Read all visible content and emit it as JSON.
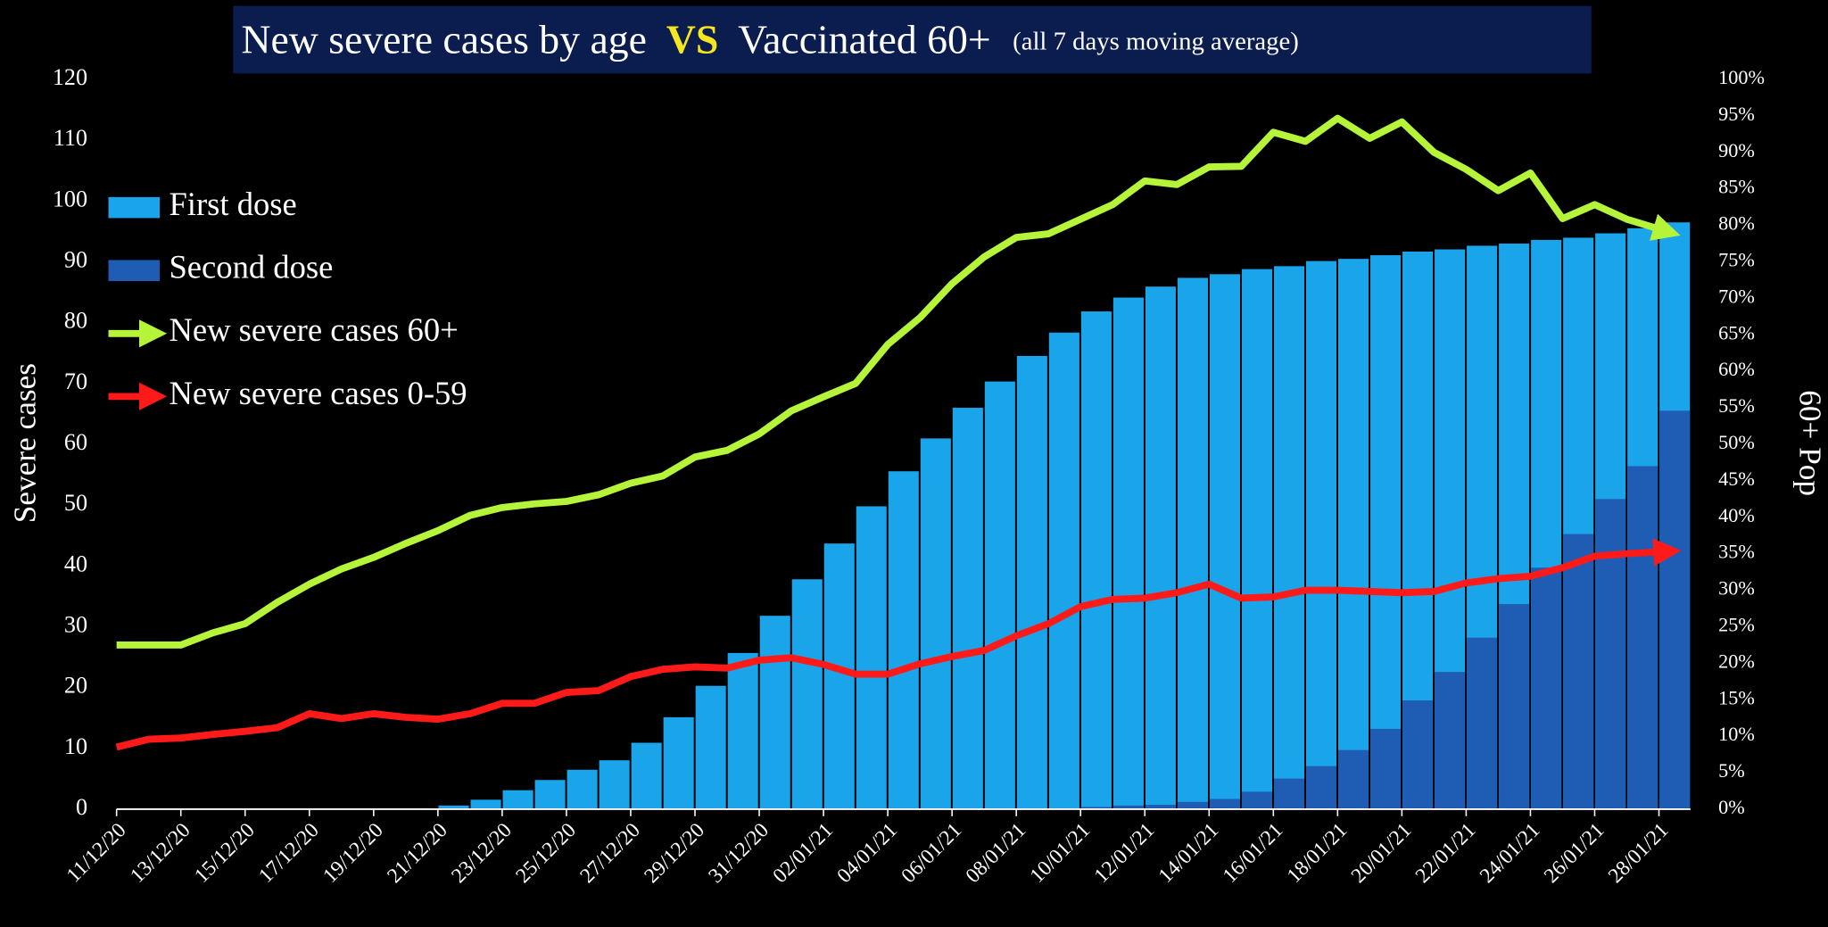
{
  "chart_data": {
    "type": "combo",
    "title_parts": [
      "New severe cases by age",
      "VS",
      "Vaccinated 60+",
      "(all 7 days moving average)"
    ],
    "y_label": "Severe cases",
    "y2_label": "60+ Pop",
    "categories": [
      "11/12/20",
      null,
      "13/12/20",
      null,
      "15/12/20",
      null,
      "17/12/20",
      null,
      "19/12/20",
      null,
      "21/12/20",
      null,
      "23/12/20",
      null,
      "25/12/20",
      null,
      "27/12/20",
      null,
      "29/12/20",
      null,
      "31/12/20",
      null,
      "02/01/21",
      null,
      "04/01/21",
      null,
      "06/01/21",
      null,
      "08/01/21",
      null,
      "10/01/21",
      null,
      "12/01/21",
      null,
      "14/01/21",
      null,
      "16/01/21",
      null,
      "18/01/21",
      null,
      "20/01/21",
      null,
      "22/01/21",
      null,
      "24/01/21",
      null,
      "26/01/21",
      null,
      "28/01/21"
    ],
    "ylim": [
      0,
      120
    ],
    "yticks": [
      0,
      10,
      20,
      30,
      40,
      50,
      60,
      70,
      80,
      90,
      100,
      110,
      120
    ],
    "y2lim": [
      0,
      100
    ],
    "y2ticks": [
      {
        "value": 0,
        "label": "0%"
      },
      {
        "value": 5,
        "label": "5%"
      },
      {
        "value": 10,
        "label": "10%"
      },
      {
        "value": 15,
        "label": "15%"
      },
      {
        "value": 20,
        "label": "20%"
      },
      {
        "value": 25,
        "label": "25%"
      },
      {
        "value": 30,
        "label": "30%"
      },
      {
        "value": 35,
        "label": "35%"
      },
      {
        "value": 40,
        "label": "40%"
      },
      {
        "value": 45,
        "label": "45%"
      },
      {
        "value": 50,
        "label": "50%"
      },
      {
        "value": 55,
        "label": "55%"
      },
      {
        "value": 60,
        "label": "60%"
      },
      {
        "value": 65,
        "label": "65%"
      },
      {
        "value": 70,
        "label": "70%"
      },
      {
        "value": 75,
        "label": "75%"
      },
      {
        "value": 80,
        "label": "80%"
      },
      {
        "value": 85,
        "label": "85%"
      },
      {
        "value": 90,
        "label": "90%"
      },
      {
        "value": 95,
        "label": "95%"
      },
      {
        "value": 100,
        "label": "100%"
      }
    ],
    "legend": "upper left",
    "series": [
      {
        "name": "First dose",
        "kind": "bar",
        "axis": "y2",
        "color": "#1aa5ea",
        "values": [
          0,
          0,
          0,
          0,
          0,
          0,
          0,
          0,
          0,
          0,
          0.5,
          1.3,
          2.6,
          4,
          5.4,
          6.7,
          9.1,
          12.6,
          16.9,
          21.4,
          26.5,
          31.5,
          36.4,
          41.5,
          46.3,
          50.8,
          55,
          58.6,
          62.1,
          65.3,
          68.2,
          70.1,
          71.6,
          72.8,
          73.3,
          74,
          74.4,
          75.1,
          75.4,
          75.9,
          76.4,
          76.7,
          77.2,
          77.5,
          78,
          78.3,
          78.9,
          79.6,
          80.4
        ]
      },
      {
        "name": "Second dose",
        "kind": "bar",
        "axis": "y2",
        "color": "#1f5cb3",
        "values": [
          0,
          0,
          0,
          0,
          0,
          0,
          0,
          0,
          0,
          0,
          0,
          0,
          0,
          0,
          0,
          0,
          0,
          0,
          0,
          0,
          0,
          0,
          0,
          0,
          0,
          0,
          0,
          0,
          0,
          0,
          0.3,
          0.5,
          0.6,
          1,
          1.4,
          2.4,
          4.2,
          5.9,
          8.1,
          11,
          14.9,
          18.8,
          23.5,
          28.1,
          33.1,
          37.7,
          42.5,
          47,
          54.6
        ]
      },
      {
        "name": "New severe cases 60+",
        "kind": "line",
        "color": "#b6f43a",
        "values": [
          27,
          27,
          27,
          29,
          30.5,
          34,
          37,
          39.5,
          41.4,
          43.7,
          45.8,
          48.3,
          49.6,
          50.2,
          50.6,
          51.7,
          53.6,
          54.8,
          57.9,
          59,
          61.7,
          65.5,
          67.8,
          70,
          76.4,
          80.8,
          86.4,
          90.8,
          94,
          94.6,
          97,
          99.4,
          103.3,
          102.7,
          105.6,
          105.7,
          111.3,
          109.8,
          113.6,
          110.3,
          113,
          108,
          105.2,
          101.7,
          104.6,
          97.1,
          99.4,
          97,
          95.4
        ]
      },
      {
        "name": "New severe cases 0-59",
        "kind": "line",
        "color": "#ff1a1a",
        "values": [
          10.2,
          11.5,
          11.7,
          12.3,
          12.8,
          13.4,
          15.7,
          14.9,
          15.7,
          15.1,
          14.8,
          15.7,
          17.4,
          17.4,
          19.2,
          19.5,
          21.8,
          23,
          23.4,
          23.2,
          24.5,
          24.9,
          23.8,
          22.2,
          22.2,
          23.9,
          25.1,
          26.1,
          28.5,
          30.5,
          33.3,
          34.5,
          34.7,
          35.6,
          37,
          34.7,
          34.9,
          36,
          36,
          35.8,
          35.6,
          35.8,
          37.2,
          37.9,
          38.3,
          39.7,
          41.6,
          42,
          42.3
        ]
      }
    ]
  }
}
